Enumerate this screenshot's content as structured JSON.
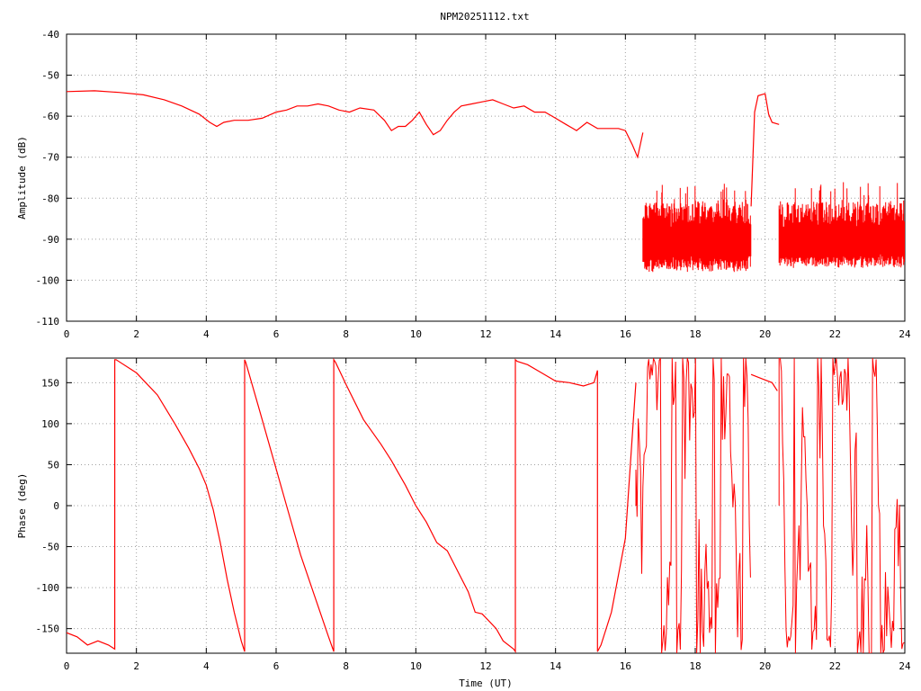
{
  "title": "NPM20251112.txt",
  "colors": {
    "series": "#ff0000",
    "axes": "#000000",
    "grid": "#a0a0a0",
    "background": "#ffffff"
  },
  "chart_data": [
    {
      "type": "line",
      "title": "NPM20251112.txt",
      "xlabel": "",
      "ylabel": "Amplitude (dB)",
      "xlim": [
        0,
        24
      ],
      "ylim": [
        -110,
        -40
      ],
      "xticks": [
        "0",
        "2",
        "4",
        "6",
        "8",
        "10",
        "12",
        "14",
        "16",
        "18",
        "20",
        "22",
        "24"
      ],
      "yticks": [
        "-40",
        "-50",
        "-60",
        "-70",
        "-80",
        "-90",
        "-100",
        "-110"
      ],
      "grid": true,
      "grid_style": "dotted",
      "series": [
        {
          "color": "#ff0000",
          "x": [
            0,
            0.8,
            1.5,
            2.2,
            2.8,
            3.3,
            3.8,
            4.1,
            4.3,
            4.5,
            4.8,
            5.2,
            5.6,
            6.0,
            6.3,
            6.6,
            6.9,
            7.2,
            7.5,
            7.8,
            8.1,
            8.4,
            8.8,
            9.1,
            9.3,
            9.5,
            9.7,
            9.9,
            10.1,
            10.3,
            10.5,
            10.7,
            10.9,
            11.1,
            11.3,
            11.6,
            11.9,
            12.2,
            12.5,
            12.8,
            13.1,
            13.4,
            13.7,
            14.0,
            14.3,
            14.6,
            14.9,
            15.2,
            15.5,
            15.8,
            16.0,
            16.2,
            16.35,
            16.5
          ],
          "y": [
            -54,
            -53.8,
            -54.2,
            -54.8,
            -56,
            -57.5,
            -59.5,
            -61.5,
            -62.5,
            -61.5,
            -61,
            -61,
            -60.5,
            -59,
            -58.5,
            -57.5,
            -57.5,
            -57,
            -57.5,
            -58.5,
            -59,
            -58,
            -58.5,
            -61,
            -63.5,
            -62.5,
            -62.5,
            -61,
            -59,
            -62,
            -64.5,
            -63.5,
            -61,
            -59,
            -57.5,
            -57,
            -56.5,
            -56,
            -57,
            -58,
            -57.5,
            -59,
            -59,
            -60.5,
            -62,
            -63.5,
            -61.5,
            -63,
            -63,
            -63,
            -63.5,
            -67,
            -70,
            -64
          ]
        }
      ],
      "noise_bands": [
        {
          "x": [
            16.5,
            19.6
          ],
          "y_lower": [
            -98,
            -92
          ],
          "y_upper": [
            -80,
            -85
          ]
        },
        {
          "x": [
            20.4,
            24.0
          ],
          "y_lower": [
            -97,
            -92
          ],
          "y_upper": [
            -78,
            -85
          ]
        }
      ],
      "segment": {
        "x": [
          19.6,
          19.7,
          19.8,
          20.0,
          20.1,
          20.2,
          20.4
        ],
        "y": [
          -82,
          -59,
          -55,
          -54.5,
          -59.5,
          -61.5,
          -62
        ]
      }
    },
    {
      "type": "line",
      "title": "",
      "xlabel": "Time (UT)",
      "ylabel": "Phase (deg)",
      "xlim": [
        0,
        24
      ],
      "ylim": [
        -180,
        180
      ],
      "xticks": [
        "0",
        "2",
        "4",
        "6",
        "8",
        "10",
        "12",
        "14",
        "16",
        "18",
        "20",
        "22",
        "24"
      ],
      "yticks": [
        "150",
        "100",
        "50",
        "0",
        "-50",
        "-100",
        "-150"
      ],
      "grid": true,
      "grid_style": "dotted",
      "series": [
        {
          "color": "#ff0000",
          "x": [
            0,
            0.3,
            0.6,
            0.9,
            1.2,
            1.38,
            1.38,
            1.42,
            2.0,
            2.6,
            3.1,
            3.5,
            3.8,
            4.0,
            4.2,
            4.4,
            4.6,
            4.8,
            5.0,
            5.1,
            5.1,
            5.13,
            5.5,
            5.9,
            6.3,
            6.7,
            7.1,
            7.5,
            7.65,
            7.65,
            7.7,
            8.0,
            8.5,
            9.0,
            9.3,
            9.5,
            9.7,
            10.0,
            10.3,
            10.6,
            10.9,
            11.2,
            11.5,
            11.7,
            11.9,
            12.3,
            12.5,
            12.8,
            12.85,
            12.85,
            12.9,
            13.2,
            13.6,
            14.0,
            14.4,
            14.8,
            15.1,
            15.2,
            15.2,
            15.3,
            15.6,
            16.0,
            16.3
          ],
          "y": [
            -155,
            -160,
            -170,
            -165,
            -170,
            -175,
            178,
            178,
            162,
            135,
            100,
            70,
            45,
            25,
            -5,
            -45,
            -90,
            -130,
            -165,
            -178,
            178,
            175,
            120,
            60,
            0,
            -60,
            -110,
            -160,
            -178,
            178,
            175,
            148,
            105,
            75,
            55,
            40,
            25,
            0,
            -20,
            -45,
            -55,
            -80,
            -105,
            -130,
            -132,
            -150,
            -165,
            -175,
            -178,
            178,
            176,
            172,
            162,
            152,
            150,
            146,
            150,
            165,
            -178,
            -170,
            -130,
            -40,
            150
          ]
        }
      ],
      "segment": {
        "x": [
          19.6,
          19.9,
          20.2,
          20.35
        ],
        "y": [
          160,
          155,
          150,
          140
        ]
      },
      "noise_ranges": [
        [
          16.3,
          19.6
        ],
        [
          20.4,
          24.0
        ]
      ],
      "noise_range_y": [
        -180,
        180
      ]
    }
  ]
}
